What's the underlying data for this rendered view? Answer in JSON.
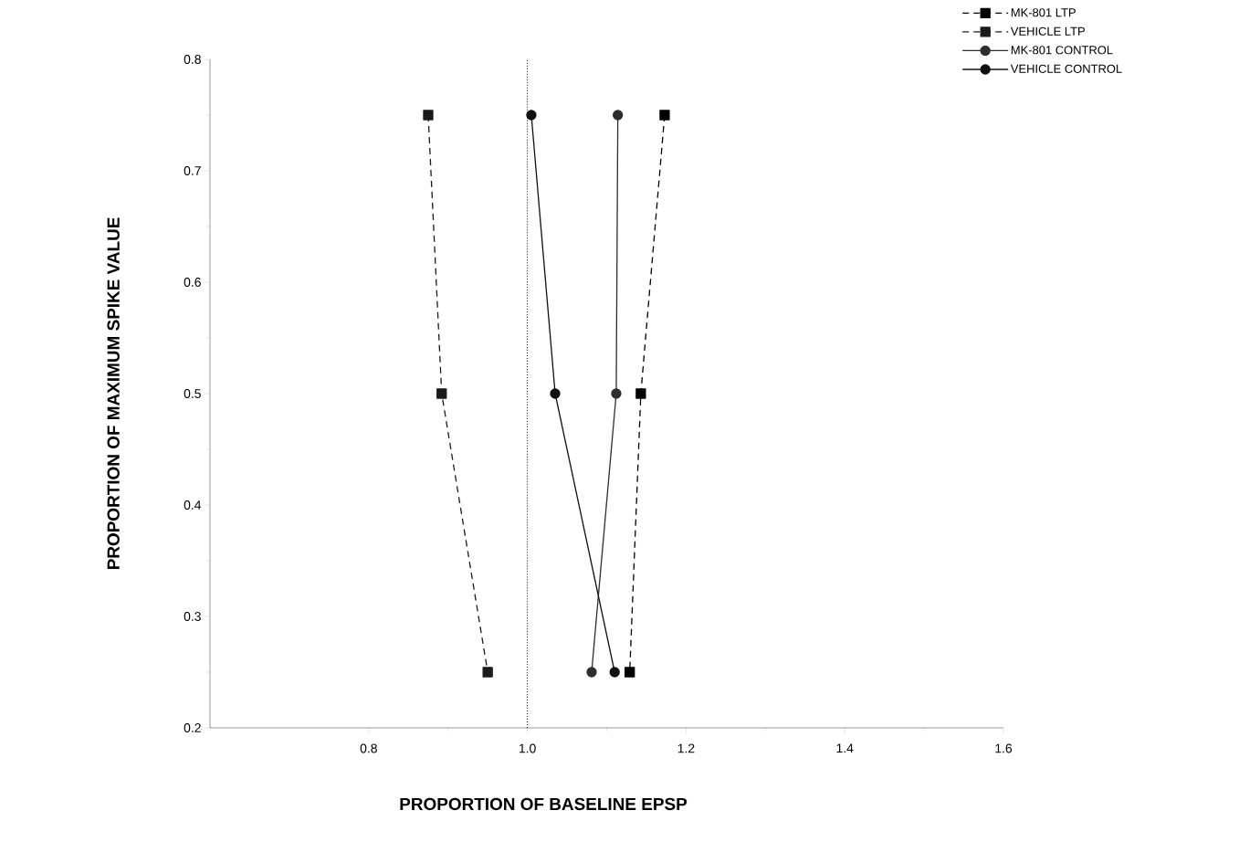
{
  "chart_data": {
    "type": "line",
    "xlabel": "PROPORTION OF BASELINE EPSP",
    "ylabel": "PROPORTION OF MAXIMUM SPIKE VALUE",
    "xlim": [
      0.6,
      1.6
    ],
    "ylim": [
      0.2,
      0.8
    ],
    "xticks": [
      0.8,
      {
        "value": 1.0,
        "label": "1.0"
      },
      1.2,
      1.4,
      1.6
    ],
    "yticks": [
      0.2,
      0.3,
      0.4,
      0.5,
      0.6,
      0.7,
      0.8
    ],
    "grid": false,
    "legend": "top right",
    "ref_lines": [
      {
        "axis": "x",
        "value": 1.0,
        "line_style": "dotted",
        "color": "#000000"
      }
    ],
    "series": [
      {
        "name": "MK-801 LTP",
        "color": "#000000",
        "marker": "square",
        "line_style": "dashed",
        "x": [
          1.173,
          1.143,
          1.129
        ],
        "values": [
          0.75,
          0.5,
          0.25
        ]
      },
      {
        "name": "VEHICLE LTP",
        "color": "#1a1a1a",
        "marker": "square",
        "line_style": "dashed",
        "x": [
          0.875,
          0.892,
          0.95
        ],
        "values": [
          0.75,
          0.5,
          0.25
        ]
      },
      {
        "name": "MK-801 CONTROL",
        "color": "#2e2e2e",
        "marker": "circle",
        "line_style": "solid",
        "x": [
          1.114,
          1.112,
          1.081
        ],
        "values": [
          0.75,
          0.5,
          0.25
        ]
      },
      {
        "name": "VEHICLE CONTROL",
        "color": "#101010",
        "marker": "circle",
        "line_style": "solid",
        "x": [
          1.005,
          1.035,
          1.11
        ],
        "values": [
          0.75,
          0.5,
          0.25
        ]
      }
    ]
  }
}
